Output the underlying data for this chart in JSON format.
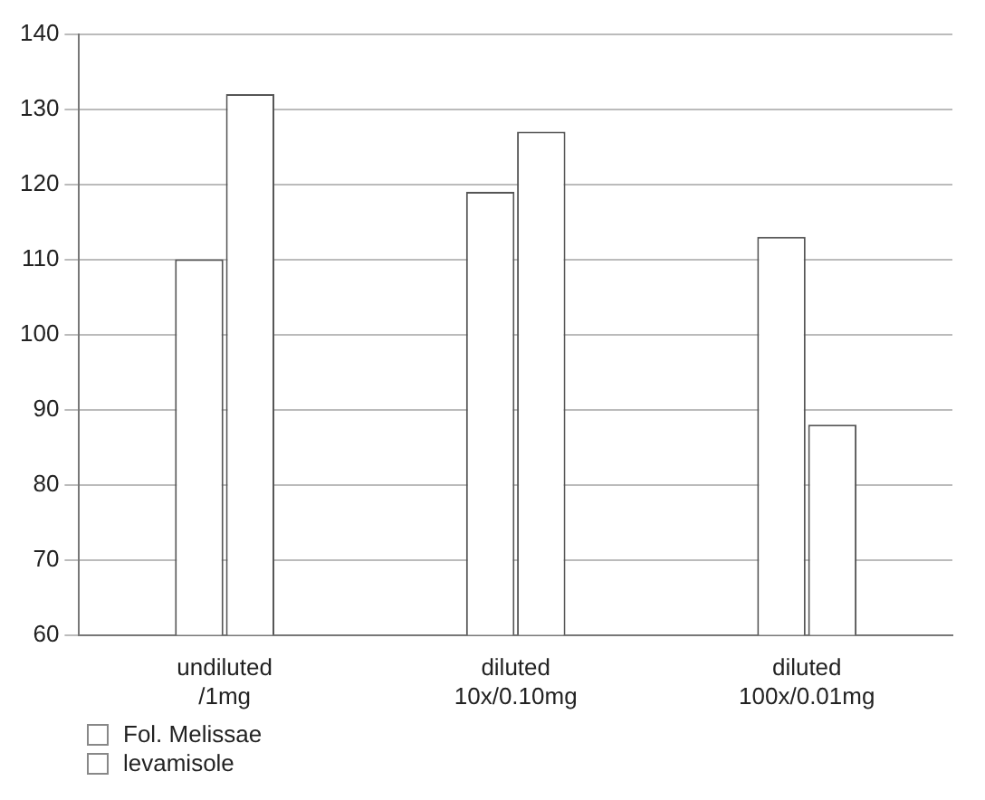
{
  "chart_data": {
    "type": "bar",
    "categories": [
      "undiluted\n/1mg",
      "diluted\n10x/0.10mg",
      "diluted\n100x/0.01mg"
    ],
    "series": [
      {
        "name": "Fol. Melissae",
        "color": "#ffffff",
        "values": [
          110,
          119,
          113
        ]
      },
      {
        "name": "levamisole",
        "color": "#ffffff",
        "values": [
          132,
          127,
          88
        ]
      }
    ],
    "ylim": [
      60,
      140
    ],
    "yticks": [
      60,
      70,
      80,
      90,
      100,
      110,
      120,
      130,
      140
    ],
    "grid": "y",
    "legend": "bottom left"
  }
}
